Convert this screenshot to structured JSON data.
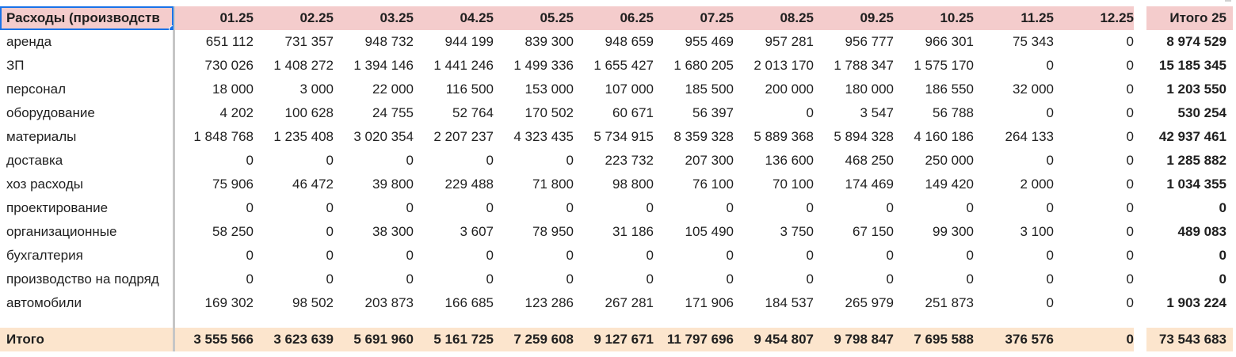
{
  "header": {
    "category_title": "Расходы (производств",
    "months": [
      "01.25",
      "02.25",
      "03.25",
      "04.25",
      "05.25",
      "06.25",
      "07.25",
      "08.25",
      "09.25",
      "10.25",
      "11.25",
      "12.25"
    ],
    "total_title": "Итого 25"
  },
  "rows": [
    {
      "label": "аренда",
      "values": [
        "651 112",
        "731 357",
        "948 732",
        "944 199",
        "839 300",
        "948 659",
        "955 469",
        "957 281",
        "956 777",
        "966 301",
        "75 343",
        "0"
      ],
      "total": "8 974 529"
    },
    {
      "label": "ЗП",
      "values": [
        "730 026",
        "1 408 272",
        "1 394 146",
        "1 441 246",
        "1 499 336",
        "1 655 427",
        "1 680 205",
        "2 013 170",
        "1 788 347",
        "1 575 170",
        "0",
        "0"
      ],
      "total": "15 185 345"
    },
    {
      "label": "персонал",
      "values": [
        "18 000",
        "3 000",
        "22 000",
        "116 500",
        "153 000",
        "107 000",
        "185 500",
        "200 000",
        "180 000",
        "186 550",
        "32 000",
        "0"
      ],
      "total": "1 203 550"
    },
    {
      "label": "оборудование",
      "values": [
        "4 202",
        "100 628",
        "24 755",
        "52 764",
        "170 502",
        "60 671",
        "56 397",
        "0",
        "3 547",
        "56 788",
        "0",
        "0"
      ],
      "total": "530 254"
    },
    {
      "label": "материалы",
      "values": [
        "1 848 768",
        "1 235 408",
        "3 020 354",
        "2 207 237",
        "4 323 435",
        "5 734 915",
        "8 359 328",
        "5 889 368",
        "5 894 328",
        "4 160 186",
        "264 133",
        "0"
      ],
      "total": "42 937 461"
    },
    {
      "label": "доставка",
      "values": [
        "0",
        "0",
        "0",
        "0",
        "0",
        "223 732",
        "207 300",
        "136 600",
        "468 250",
        "250 000",
        "0",
        "0"
      ],
      "total": "1 285 882"
    },
    {
      "label": "хоз расходы",
      "values": [
        "75 906",
        "46 472",
        "39 800",
        "229 488",
        "71 800",
        "98 800",
        "76 100",
        "70 100",
        "174 469",
        "149 420",
        "2 000",
        "0"
      ],
      "total": "1 034 355"
    },
    {
      "label": "проектирование",
      "values": [
        "0",
        "0",
        "0",
        "0",
        "0",
        "0",
        "0",
        "0",
        "0",
        "0",
        "0",
        "0"
      ],
      "total": "0"
    },
    {
      "label": "организационные",
      "values": [
        "58 250",
        "0",
        "38 300",
        "3 607",
        "78 950",
        "31 186",
        "105 490",
        "3 750",
        "67 150",
        "99 300",
        "3 100",
        "0"
      ],
      "total": "489 083"
    },
    {
      "label": "бухгалтерия",
      "values": [
        "0",
        "0",
        "0",
        "0",
        "0",
        "0",
        "0",
        "0",
        "0",
        "0",
        "0",
        "0"
      ],
      "total": "0"
    },
    {
      "label": "производство на подряд",
      "values": [
        "0",
        "0",
        "0",
        "0",
        "0",
        "0",
        "0",
        "0",
        "0",
        "0",
        "0",
        "0"
      ],
      "total": "0"
    },
    {
      "label": "автомобили",
      "values": [
        "169 302",
        "98 502",
        "203 873",
        "166 685",
        "123 286",
        "267 281",
        "171 906",
        "184 537",
        "265 979",
        "251 873",
        "0",
        "0"
      ],
      "total": "1 903 224"
    }
  ],
  "summary": {
    "label": "Итого",
    "values": [
      "3 555 566",
      "3 623 639",
      "5 691 960",
      "5 161 725",
      "7 259 608",
      "9 127 671",
      "11 797 696",
      "9 454 807",
      "9 798 847",
      "7 695 588",
      "376 576",
      "0"
    ],
    "total": "73 543 683"
  },
  "colors": {
    "header_background": "#f4cccc",
    "summary_background": "#fce5cd",
    "selection_outline": "#1a73e8",
    "frozen_divider": "#c6c6c6"
  }
}
